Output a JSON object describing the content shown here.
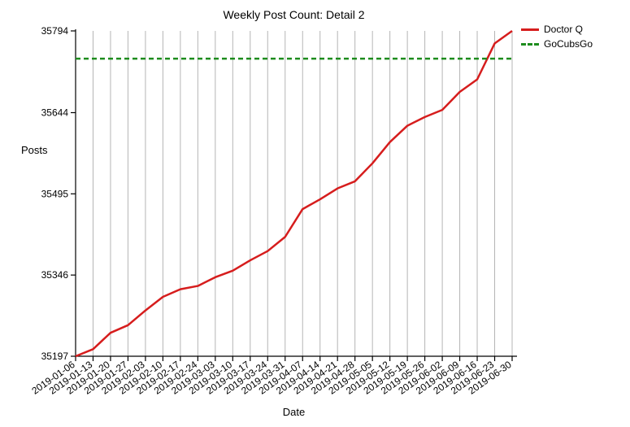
{
  "chart_data": {
    "type": "line",
    "title": "Weekly Post Count: Detail 2",
    "xlabel": "Date",
    "ylabel": "Posts",
    "x": [
      "2019-01-06",
      "2019-01-13",
      "2019-01-20",
      "2019-01-27",
      "2019-02-03",
      "2019-02-10",
      "2019-02-17",
      "2019-02-24",
      "2019-03-03",
      "2019-03-10",
      "2019-03-17",
      "2019-03-24",
      "2019-03-31",
      "2019-04-07",
      "2019-04-14",
      "2019-04-21",
      "2019-04-28",
      "2019-05-05",
      "2019-05-12",
      "2019-05-19",
      "2019-05-26",
      "2019-06-02",
      "2019-06-09",
      "2019-06-16",
      "2019-06-23",
      "2019-06-30"
    ],
    "yticks": [
      35197,
      35346,
      35495,
      35644,
      35794
    ],
    "ylim": [
      35197,
      35794
    ],
    "grid": "vertical",
    "legend_position": "top-right, outside plot",
    "series": [
      {
        "name": "Doctor Q",
        "color": "#d61d1d",
        "style": "solid",
        "values": [
          35197,
          35210,
          35240,
          35254,
          35281,
          35306,
          35320,
          35326,
          35342,
          35354,
          35373,
          35390,
          35416,
          35467,
          35485,
          35505,
          35518,
          35551,
          35590,
          35620,
          35636,
          35649,
          35682,
          35705,
          35771,
          35794
        ]
      },
      {
        "name": "GoCubsGo",
        "color": "#1d8c1d",
        "style": "dashed",
        "values": [
          35743,
          35743,
          35743,
          35743,
          35743,
          35743,
          35743,
          35743,
          35743,
          35743,
          35743,
          35743,
          35743,
          35743,
          35743,
          35743,
          35743,
          35743,
          35743,
          35743,
          35743,
          35743,
          35743,
          35743,
          35743,
          35743
        ]
      }
    ]
  }
}
